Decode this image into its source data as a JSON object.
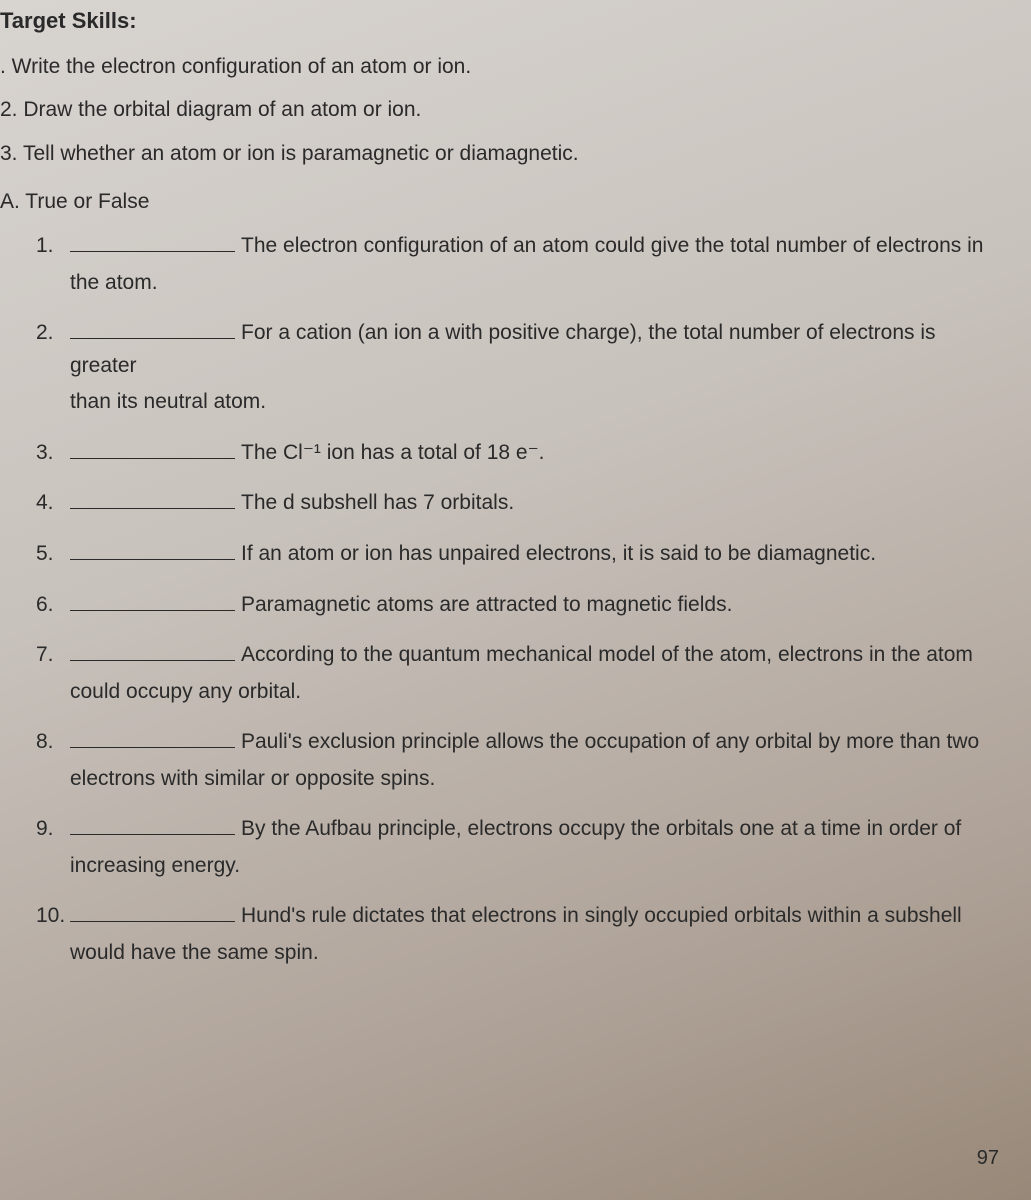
{
  "header": "Target Skills:",
  "skills": [
    ".  Write the electron configuration of an atom or ion.",
    "2.  Draw the orbital diagram of an atom or ion.",
    "3.  Tell whether an atom or ion is paramagnetic or diamagnetic."
  ],
  "section_label": "A.  True or False",
  "questions": [
    {
      "num": "1.",
      "text": "The electron configuration of an atom could give the total number of electrons in",
      "cont": "the atom."
    },
    {
      "num": "2.",
      "text": "For a cation (an ion a with positive charge), the total number of electrons is greater",
      "cont": "than its neutral atom."
    },
    {
      "num": "3.",
      "text": "The Cl⁻¹ ion has a total of 18 e⁻.",
      "cont": ""
    },
    {
      "num": "4.",
      "text": "The d subshell has 7 orbitals.",
      "cont": ""
    },
    {
      "num": "5.",
      "text": "If an atom or ion has unpaired electrons, it is said to be diamagnetic.",
      "cont": ""
    },
    {
      "num": "6.",
      "text": "Paramagnetic atoms are attracted to magnetic fields.",
      "cont": ""
    },
    {
      "num": "7.",
      "text": "According to the quantum mechanical model of the atom, electrons in the atom",
      "cont": "could occupy any orbital."
    },
    {
      "num": "8.",
      "text": "Pauli's exclusion principle allows the occupation of any orbital by more than two",
      "cont": "electrons with similar or opposite spins."
    },
    {
      "num": "9.",
      "text": "By the Aufbau principle, electrons occupy the orbitals one at a time in order of",
      "cont": "increasing energy."
    },
    {
      "num": "10.",
      "text": "Hund's rule dictates that electrons in singly occupied orbitals within a subshell",
      "cont": "would have the same spin."
    }
  ],
  "page_number": "97"
}
